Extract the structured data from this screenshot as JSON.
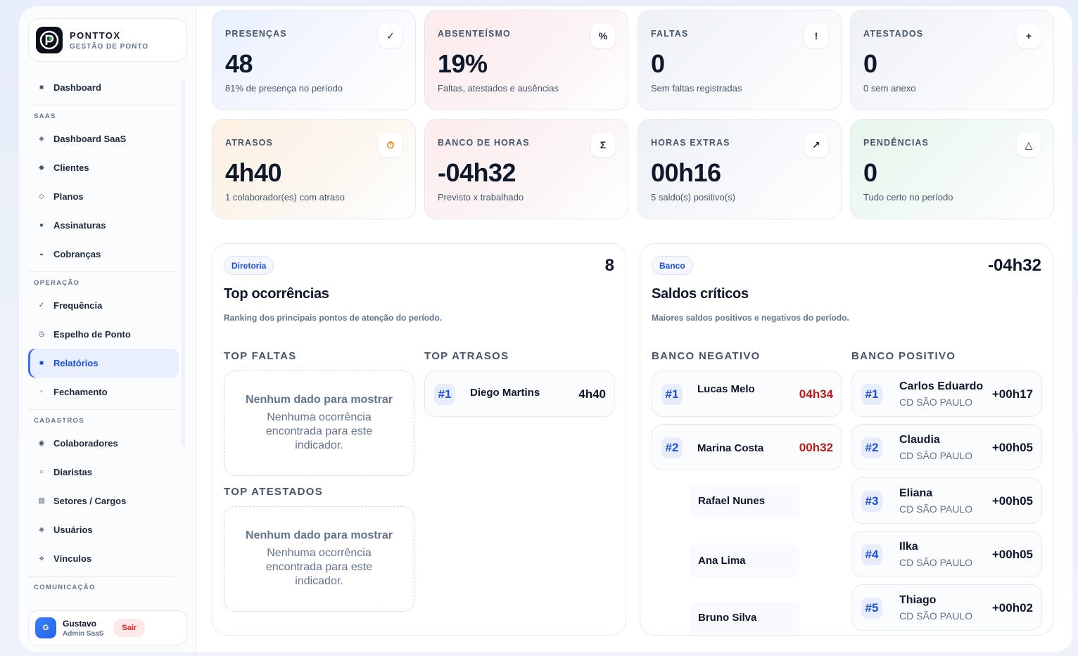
{
  "brand": {
    "title": "PONTTOX",
    "subtitle": "GESTÃO DE PONTO"
  },
  "nav": {
    "dashboard": "Dashboard",
    "saas_section": "SAAS",
    "saas": [
      "Dashboard SaaS",
      "Clientes",
      "Planos",
      "Assinaturas",
      "Cobranças"
    ],
    "operacao_section": "OPERAÇÃO",
    "operacao": [
      "Frequência",
      "Espelho de Ponto",
      "Relatórios",
      "Fechamento"
    ],
    "cadastros_section": "CADASTROS",
    "cadastros": [
      "Colaboradores",
      "Diaristas",
      "Setores / Cargos",
      "Usuários",
      "Vínculos"
    ],
    "comunicacao_section": "COMUNICAÇÃO"
  },
  "user": {
    "initial": "G",
    "name": "Gustavo",
    "role": "Admin SaaS",
    "logout": "Sair"
  },
  "kpis": [
    {
      "label": "PRESENÇAS",
      "value": "48",
      "desc": "81% de presença no período",
      "icon": "✓"
    },
    {
      "label": "ABSENTEÍSMO",
      "value": "19%",
      "desc": "Faltas, atestados e ausências",
      "icon": "%"
    },
    {
      "label": "FALTAS",
      "value": "0",
      "desc": "Sem faltas registradas",
      "icon": "!"
    },
    {
      "label": "ATESTADOS",
      "value": "0",
      "desc": "0 sem anexo",
      "icon": "+"
    },
    {
      "label": "ATRASOS",
      "value": "4h40",
      "desc": "1 colaborador(es) com atraso",
      "icon": "⏱"
    },
    {
      "label": "BANCO DE HORAS",
      "value": "-04h32",
      "desc": "Previsto x trabalhado",
      "icon": "Σ"
    },
    {
      "label": "HORAS EXTRAS",
      "value": "00h16",
      "desc": "5 saldo(s) positivo(s)",
      "icon": "↗"
    },
    {
      "label": "PENDÊNCIAS",
      "value": "0",
      "desc": "Tudo certo no período",
      "icon": "△"
    }
  ],
  "top": {
    "tag": "Diretoria",
    "count": "8",
    "title": "Top ocorrências",
    "subtitle": "Ranking dos principais pontos de atenção do período.",
    "faltas_title": "TOP FALTAS",
    "atrasos_title": "TOP ATRASOS",
    "atestados_title": "TOP ATESTADOS",
    "empty_title": "Nenhum dado para mostrar",
    "empty_text": "Nenhuma ocorrência encontrada para este indicador.",
    "atrasos": [
      {
        "rank": "#1",
        "name": "Diego Martins",
        "value": "4h40"
      }
    ]
  },
  "saldos": {
    "tag": "Banco",
    "total": "-04h32",
    "title": "Saldos críticos",
    "subtitle": "Maiores saldos positivos e negativos do período.",
    "neg_title": "BANCO NEGATIVO",
    "pos_title": "BANCO POSITIVO",
    "negativos": [
      {
        "rank": "#1",
        "name": "Lucas Melo",
        "value": "04h34"
      },
      {
        "rank": "#2",
        "name": "Marina Costa",
        "value": "00h32"
      }
    ],
    "extras": [
      "Rafael Nunes",
      "Ana Lima",
      "Bruno Silva"
    ],
    "positivos": [
      {
        "rank": "#1",
        "name": "Carlos Eduardo",
        "loc": "CD SÃO PAULO",
        "value": "+00h17"
      },
      {
        "rank": "#2",
        "name": "Claudia",
        "loc": "CD SÃO PAULO",
        "value": "+00h05"
      },
      {
        "rank": "#3",
        "name": "Eliana",
        "loc": "CD SÃO PAULO",
        "value": "+00h05"
      },
      {
        "rank": "#4",
        "name": "Ilka",
        "loc": "CD SÃO PAULO",
        "value": "+00h05"
      },
      {
        "rank": "#5",
        "name": "Thiago",
        "loc": "CD SÃO PAULO",
        "value": "+00h02"
      }
    ]
  }
}
